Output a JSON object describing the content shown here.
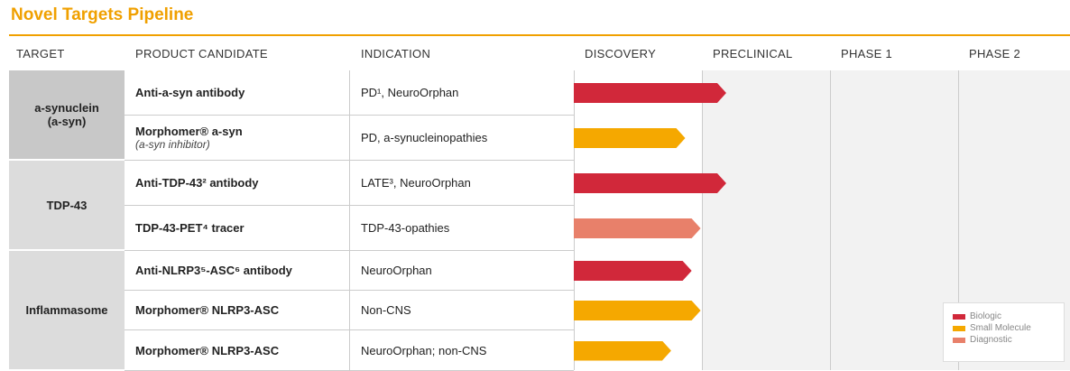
{
  "chart_data": {
    "type": "pipeline",
    "title": "Novel Targets Pipeline",
    "columns": [
      "TARGET",
      "PRODUCT CANDIDATE",
      "INDICATION"
    ],
    "stages": [
      "DISCOVERY",
      "PRECLINICAL",
      "PHASE 1",
      "PHASE 2"
    ],
    "xlim": [
      0,
      4
    ],
    "targets": [
      {
        "name": "a-synuclein\n(a-syn)",
        "rows": 2,
        "color": "#c8c8c8"
      },
      {
        "name": "TDP-43",
        "rows": 2,
        "color": "#dcdcdc"
      },
      {
        "name": "Inflammasome",
        "rows": 3,
        "color": "#dcdcdc"
      }
    ],
    "rows": [
      {
        "product": "Anti-a-syn  antibody",
        "indication": "PD¹, NeuroOrphan",
        "kind": 0,
        "progress": 1.19
      },
      {
        "product": "Morphomer® a-syn",
        "note": "(a-syn inhibitor)",
        "indication": "PD, a-synucleinopathies",
        "kind": 1,
        "progress": 0.87
      },
      {
        "product": "Anti-TDP-43² antibody",
        "indication": "LATE³, NeuroOrphan",
        "kind": 0,
        "progress": 1.19
      },
      {
        "product": "TDP-43-PET⁴ tracer",
        "indication": "TDP-43-opathies",
        "kind": 2,
        "progress": 0.99
      },
      {
        "product": "Anti-NLRP3⁵-ASC⁶ antibody",
        "indication": "NeuroOrphan",
        "kind": 0,
        "progress": 0.92
      },
      {
        "product": "Morphomer® NLRP3-ASC",
        "indication": "Non-CNS",
        "kind": 1,
        "progress": 0.99
      },
      {
        "product": "Morphomer® NLRP3-ASC",
        "indication": "NeuroOrphan; non-CNS",
        "kind": 1,
        "progress": 0.76
      }
    ],
    "legend": [
      {
        "name": "Biologic",
        "color": "#d1283a"
      },
      {
        "name": "Small Molecule",
        "color": "#f5a800"
      },
      {
        "name": "Diagnostic",
        "color": "#e8806a"
      }
    ]
  }
}
